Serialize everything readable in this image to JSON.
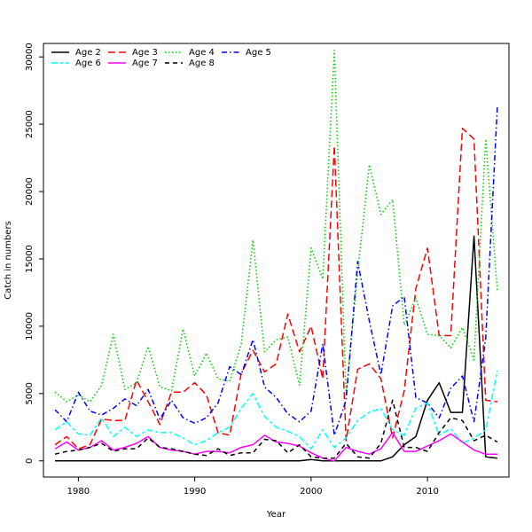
{
  "chart_data": {
    "type": "line",
    "title": "",
    "xlabel": "Year",
    "ylabel": "Catch in numbers",
    "xlim": [
      1977,
      2017
    ],
    "ylim": [
      -1200,
      31000
    ],
    "xticks": [
      1980,
      1990,
      2000,
      2010
    ],
    "yticks": [
      0,
      5000,
      10000,
      15000,
      20000,
      25000,
      30000
    ],
    "grid": false,
    "legend_position": "top-left",
    "x": [
      1978,
      1979,
      1980,
      1981,
      1982,
      1983,
      1984,
      1985,
      1986,
      1987,
      1988,
      1989,
      1990,
      1991,
      1992,
      1993,
      1994,
      1995,
      1996,
      1997,
      1998,
      1999,
      2000,
      2001,
      2002,
      2003,
      2004,
      2005,
      2006,
      2007,
      2008,
      2009,
      2010,
      2011,
      2012,
      2013,
      2014,
      2015,
      2016
    ],
    "series": [
      {
        "name": "Age 2",
        "color": "#000000",
        "dash": "solid",
        "values": [
          0,
          0,
          0,
          0,
          0,
          0,
          0,
          0,
          0,
          0,
          0,
          0,
          0,
          0,
          0,
          0,
          0,
          0,
          0,
          0,
          0,
          0,
          100,
          0,
          0,
          0,
          0,
          0,
          0,
          300,
          1200,
          1800,
          4500,
          5800,
          3600,
          3600,
          16700,
          300,
          200
        ]
      },
      {
        "name": "Age 3",
        "color": "#ff0000",
        "dash": "longdash",
        "values": [
          1200,
          1800,
          900,
          1200,
          3100,
          3000,
          3000,
          6000,
          4400,
          2700,
          5100,
          5100,
          5800,
          4900,
          2100,
          1900,
          6500,
          8200,
          6600,
          7200,
          10900,
          8100,
          10000,
          6100,
          23400,
          1500,
          6800,
          7200,
          6100,
          1700,
          5200,
          12800,
          15800,
          9300,
          9300,
          24700,
          23900,
          4500,
          4400
        ]
      },
      {
        "name": "Age 4",
        "color": "#00cc00",
        "dash": "dotted",
        "values": [
          5100,
          4400,
          4900,
          4400,
          5600,
          9400,
          5300,
          5800,
          8500,
          5500,
          5200,
          9800,
          6300,
          8000,
          6100,
          5900,
          8700,
          16400,
          8100,
          9000,
          9200,
          5600,
          15800,
          13500,
          30500,
          4900,
          14000,
          22000,
          18300,
          19400,
          10100,
          12100,
          9400,
          9300,
          8400,
          9900,
          7500,
          23900,
          12600
        ]
      },
      {
        "name": "Age 5",
        "color": "#0000ff",
        "dash": "dashdot",
        "values": [
          3800,
          2900,
          5100,
          3700,
          3400,
          3900,
          4600,
          4100,
          5300,
          3100,
          4500,
          3200,
          2800,
          3200,
          4300,
          7000,
          6400,
          9000,
          5500,
          4700,
          3500,
          2900,
          3700,
          8700,
          1900,
          4500,
          14800,
          10400,
          6400,
          11500,
          12200,
          4700,
          4300,
          3200,
          5400,
          6300,
          2900,
          9100,
          26300
        ]
      },
      {
        "name": "Age 6",
        "color": "#00ffff",
        "dash": "twodash",
        "values": [
          2300,
          2900,
          2000,
          1900,
          3200,
          1800,
          2500,
          1800,
          2300,
          2100,
          2100,
          1700,
          1200,
          1500,
          2100,
          2500,
          3900,
          5000,
          3300,
          2500,
          2200,
          1800,
          900,
          2300,
          1000,
          1700,
          3000,
          3600,
          3900,
          2300,
          1900,
          3900,
          4300,
          1900,
          2400,
          1300,
          1700,
          2300,
          6700
        ]
      },
      {
        "name": "Age 7",
        "color": "#ff00ff",
        "dash": "solid",
        "values": [
          900,
          1400,
          800,
          1000,
          1500,
          800,
          1000,
          1300,
          1800,
          1000,
          800,
          700,
          500,
          700,
          700,
          600,
          1000,
          1200,
          1900,
          1400,
          1300,
          1100,
          600,
          200,
          0,
          1000,
          700,
          500,
          900,
          2100,
          700,
          700,
          1100,
          1500,
          2000,
          1400,
          800,
          500,
          500
        ]
      },
      {
        "name": "Age 8",
        "color": "#000000",
        "dash": "dashed",
        "values": [
          500,
          700,
          800,
          1000,
          1300,
          700,
          900,
          900,
          1700,
          1000,
          900,
          700,
          500,
          400,
          900,
          400,
          600,
          600,
          1600,
          1500,
          600,
          1200,
          300,
          200,
          200,
          1300,
          300,
          200,
          1300,
          4500,
          1000,
          1000,
          700,
          2100,
          3200,
          3000,
          1500,
          1900,
          1400
        ]
      }
    ]
  }
}
